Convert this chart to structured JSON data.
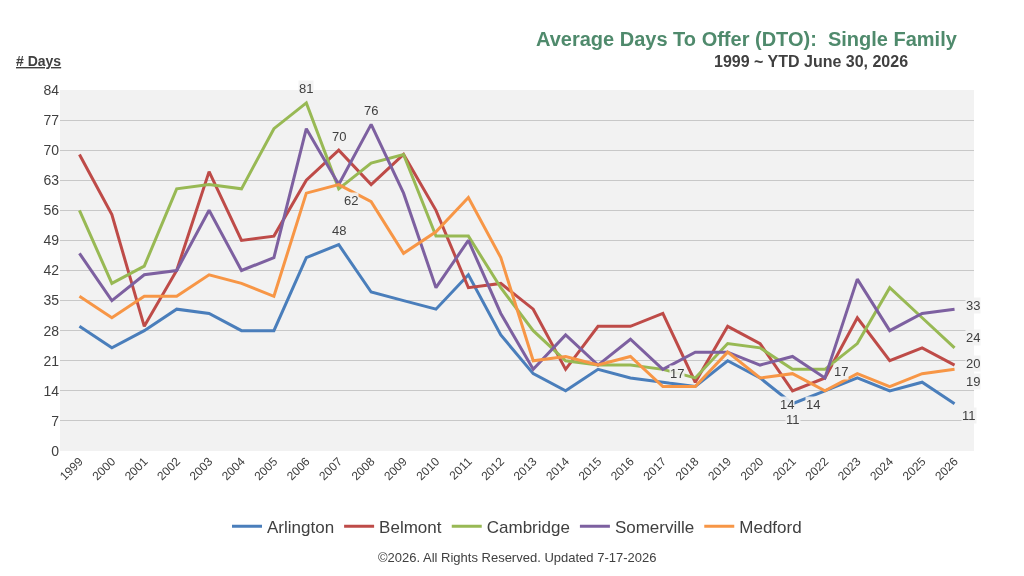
{
  "chart_data": {
    "type": "line",
    "title": "Average Days To Offer (DTO):  Single Family",
    "subtitle": "1999 ~ YTD June 30, 2026",
    "ylabel": "# Days",
    "categories": [
      "1999",
      "2000",
      "2001",
      "2002",
      "2003",
      "2004",
      "2005",
      "2006",
      "2007",
      "2008",
      "2009",
      "2010",
      "2011",
      "2012",
      "2013",
      "2014",
      "2015",
      "2016",
      "2017",
      "2018",
      "2019",
      "2020",
      "2021",
      "2022",
      "2023",
      "2024",
      "2025",
      "2026"
    ],
    "series": [
      {
        "name": "Arlington",
        "color": "#4a7ebb",
        "values": [
          29,
          24,
          28,
          33,
          32,
          28,
          28,
          45,
          48,
          37,
          35,
          33,
          41,
          27,
          18,
          14,
          19,
          17,
          16,
          15,
          21,
          17,
          11,
          14,
          17,
          14,
          16,
          11
        ],
        "value_labels": [
          null,
          null,
          null,
          null,
          null,
          null,
          null,
          null,
          "48",
          null,
          null,
          null,
          null,
          null,
          null,
          null,
          null,
          null,
          null,
          null,
          null,
          null,
          "11",
          "14",
          null,
          null,
          null,
          "11"
        ]
      },
      {
        "name": "Belmont",
        "color": "#be4b48",
        "values": [
          69,
          55,
          29,
          42,
          65,
          49,
          50,
          63,
          70,
          62,
          69,
          56,
          38,
          39,
          33,
          19,
          29,
          29,
          32,
          16,
          29,
          25,
          14,
          17,
          31,
          21,
          24,
          20
        ],
        "value_labels": [
          null,
          null,
          null,
          null,
          null,
          null,
          null,
          null,
          "70",
          null,
          null,
          null,
          null,
          null,
          null,
          null,
          null,
          null,
          null,
          null,
          null,
          null,
          "14",
          null,
          null,
          null,
          null,
          "20"
        ]
      },
      {
        "name": "Cambridge",
        "color": "#98b954",
        "values": [
          56,
          39,
          43,
          61,
          62,
          61,
          75,
          81,
          61,
          67,
          69,
          50,
          50,
          38,
          28,
          21,
          20,
          20,
          19,
          17,
          25,
          24,
          19,
          19,
          25,
          38,
          31,
          24
        ],
        "value_labels": [
          null,
          null,
          null,
          null,
          null,
          null,
          null,
          "81",
          null,
          null,
          null,
          null,
          null,
          null,
          null,
          null,
          null,
          null,
          null,
          "17",
          null,
          null,
          null,
          null,
          null,
          null,
          null,
          "24"
        ]
      },
      {
        "name": "Somerville",
        "color": "#7d60a0",
        "values": [
          46,
          35,
          41,
          42,
          56,
          42,
          45,
          75,
          62,
          76,
          60,
          38,
          49,
          32,
          19,
          27,
          20,
          26,
          19,
          23,
          23,
          20,
          22,
          17,
          40,
          28,
          32,
          33
        ],
        "value_labels": [
          null,
          null,
          null,
          null,
          null,
          null,
          null,
          null,
          "62",
          "76",
          null,
          null,
          null,
          null,
          null,
          null,
          null,
          null,
          null,
          null,
          null,
          null,
          null,
          "17",
          null,
          null,
          null,
          "33"
        ]
      },
      {
        "name": "Medford",
        "color": "#f79646",
        "values": [
          36,
          31,
          36,
          36,
          41,
          39,
          36,
          60,
          62,
          58,
          46,
          51,
          59,
          45,
          21,
          22,
          20,
          22,
          15,
          15,
          23,
          17,
          18,
          14,
          18,
          15,
          18,
          19
        ],
        "value_labels": [
          null,
          null,
          null,
          null,
          null,
          null,
          null,
          null,
          null,
          null,
          null,
          null,
          null,
          null,
          null,
          null,
          null,
          null,
          null,
          null,
          null,
          null,
          null,
          null,
          null,
          null,
          null,
          "19"
        ]
      }
    ],
    "ylim": [
      0,
      84
    ],
    "yticks": [
      0,
      7,
      14,
      21,
      28,
      35,
      42,
      49,
      56,
      63,
      70,
      77,
      84
    ],
    "grid": "y",
    "legend": "bottom",
    "marker": "none",
    "line_style": "solid",
    "annotations": [
      "©2026. All Rights Reserved. Updated 7-17-2026"
    ]
  }
}
